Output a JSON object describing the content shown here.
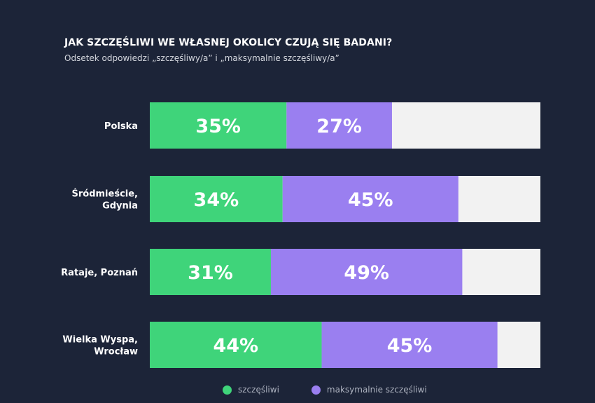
{
  "chart_data": {
    "type": "bar",
    "orientation": "horizontal",
    "stacked": true,
    "title": "JAK SZCZĘŚLIWI WE WŁASNEJ OKOLICY CZUJĄ SIĘ BADANI?",
    "subtitle": "Odsetek odpowiedzi „szczęśliwy/a” i „maksymalnie szczęśliwy/a”",
    "categories": [
      [
        "Polska"
      ],
      [
        "Śródmieście,",
        "Gdynia"
      ],
      [
        "Rataje, Poznań"
      ],
      [
        "Wielka Wyspa,",
        "Wrocław"
      ]
    ],
    "series": [
      {
        "name": "szczęśliwi",
        "values": [
          35,
          34,
          31,
          44
        ],
        "labels": [
          "35%",
          "34%",
          "31%",
          "44%"
        ],
        "color": "#3fd47a"
      },
      {
        "name": "maksymalnie szczęśliwi",
        "values": [
          27,
          45,
          49,
          45
        ],
        "labels": [
          "27%",
          "45%",
          "49%",
          "45%"
        ],
        "color": "#9a7ff0"
      }
    ],
    "remainder_color": "#f2f2f2",
    "xlim": [
      0,
      100
    ],
    "legend_position": "bottom",
    "grid": false
  }
}
